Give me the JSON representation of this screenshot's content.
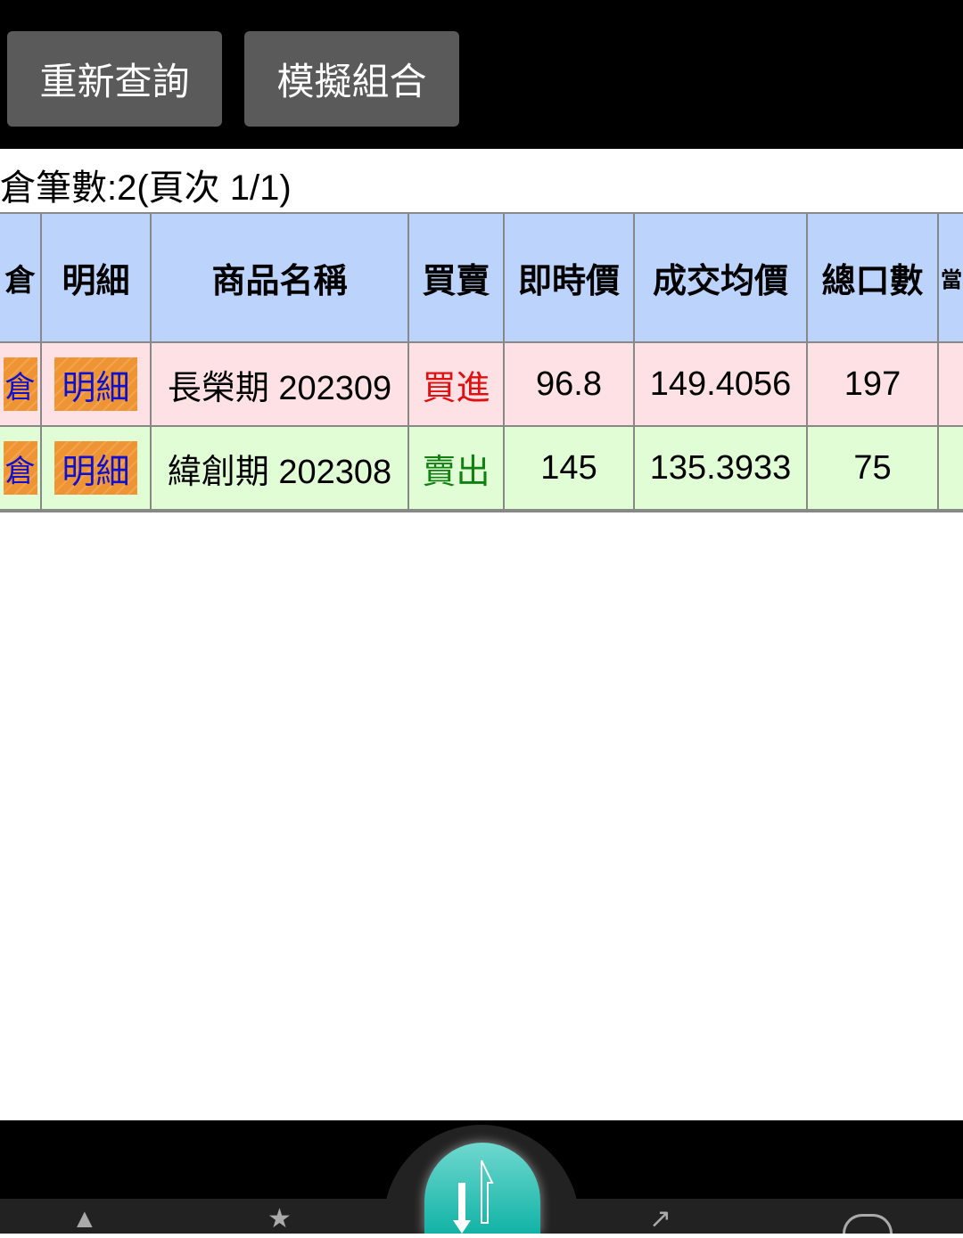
{
  "toolbar": {
    "requery_label": "重新查詢",
    "simulate_label": "模擬組合"
  },
  "summary": {
    "count_text": "倉筆數:2(頁次 1/1)"
  },
  "table": {
    "headers": [
      "倉",
      "明細",
      "商品名稱",
      "買賣",
      "即時價",
      "成交均價",
      "總口數",
      "當"
    ],
    "rows": [
      {
        "action": "倉",
        "detail": "明細",
        "name": "長榮期 202309",
        "side": "買進",
        "price": "96.8",
        "avg": "149.4056",
        "qty": "197",
        "row_color": "#fde1e4",
        "side_color": "#e01010"
      },
      {
        "action": "倉",
        "detail": "明細",
        "name": "緯創期 202308",
        "side": "賣出",
        "price": "145",
        "avg": "135.3933",
        "qty": "75",
        "row_color": "#e1fdd6",
        "side_color": "#108010"
      }
    ]
  },
  "colors": {
    "header_bg": "#bcd3fb",
    "button_bg": "#5a5a5a",
    "fab": "#12b3a6",
    "tag": "#ef9433"
  },
  "bottom_nav": {
    "icons": [
      "home-icon",
      "star-icon",
      "trade-arrows-icon",
      "chart-icon",
      "info-icon"
    ]
  }
}
